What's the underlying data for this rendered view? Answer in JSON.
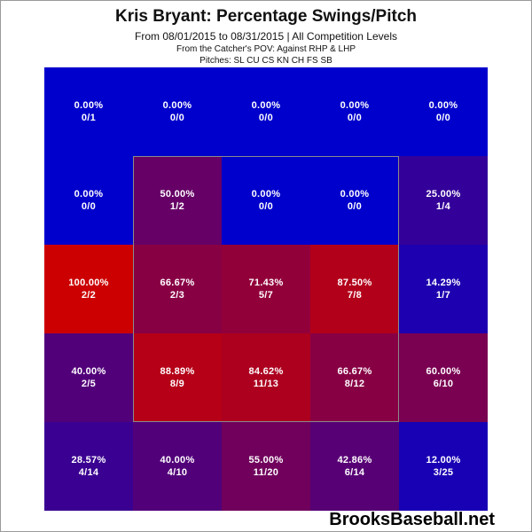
{
  "title": "Kris Bryant: Percentage Swings/Pitch",
  "subtitle": "From 08/01/2015 to 08/31/2015 | All Competition Levels",
  "pov_line": "From the Catcher's POV:   Against RHP & LHP",
  "pitches_line": "Pitches:  SL  CU  CS  KN  CH  FS  SB",
  "brand": "BrooksBaseball.net",
  "chart_data": {
    "type": "heatmap",
    "rows": 5,
    "cols": 5,
    "cells": [
      [
        {
          "pct": "0.00%",
          "ratio": "0/1",
          "value": 0.0
        },
        {
          "pct": "0.00%",
          "ratio": "0/0",
          "value": 0.0
        },
        {
          "pct": "0.00%",
          "ratio": "0/0",
          "value": 0.0
        },
        {
          "pct": "0.00%",
          "ratio": "0/0",
          "value": 0.0
        },
        {
          "pct": "0.00%",
          "ratio": "0/0",
          "value": 0.0
        }
      ],
      [
        {
          "pct": "0.00%",
          "ratio": "0/0",
          "value": 0.0
        },
        {
          "pct": "50.00%",
          "ratio": "1/2",
          "value": 50.0
        },
        {
          "pct": "0.00%",
          "ratio": "0/0",
          "value": 0.0
        },
        {
          "pct": "0.00%",
          "ratio": "0/0",
          "value": 0.0
        },
        {
          "pct": "25.00%",
          "ratio": "1/4",
          "value": 25.0
        }
      ],
      [
        {
          "pct": "100.00%",
          "ratio": "2/2",
          "value": 100.0
        },
        {
          "pct": "66.67%",
          "ratio": "2/3",
          "value": 66.67
        },
        {
          "pct": "71.43%",
          "ratio": "5/7",
          "value": 71.43
        },
        {
          "pct": "87.50%",
          "ratio": "7/8",
          "value": 87.5
        },
        {
          "pct": "14.29%",
          "ratio": "1/7",
          "value": 14.29
        }
      ],
      [
        {
          "pct": "40.00%",
          "ratio": "2/5",
          "value": 40.0
        },
        {
          "pct": "88.89%",
          "ratio": "8/9",
          "value": 88.89
        },
        {
          "pct": "84.62%",
          "ratio": "11/13",
          "value": 84.62
        },
        {
          "pct": "66.67%",
          "ratio": "8/12",
          "value": 66.67
        },
        {
          "pct": "60.00%",
          "ratio": "6/10",
          "value": 60.0
        }
      ],
      [
        {
          "pct": "28.57%",
          "ratio": "4/14",
          "value": 28.57
        },
        {
          "pct": "40.00%",
          "ratio": "4/10",
          "value": 40.0
        },
        {
          "pct": "55.00%",
          "ratio": "11/20",
          "value": 55.0
        },
        {
          "pct": "42.86%",
          "ratio": "6/14",
          "value": 42.86
        },
        {
          "pct": "12.00%",
          "ratio": "3/25",
          "value": 12.0
        }
      ]
    ],
    "colors": {
      "low": "#0000cc",
      "high": "#cc0000",
      "strike_zone_border": "#8a8a8a"
    },
    "strike_zone": "inner 3x3 grid"
  }
}
